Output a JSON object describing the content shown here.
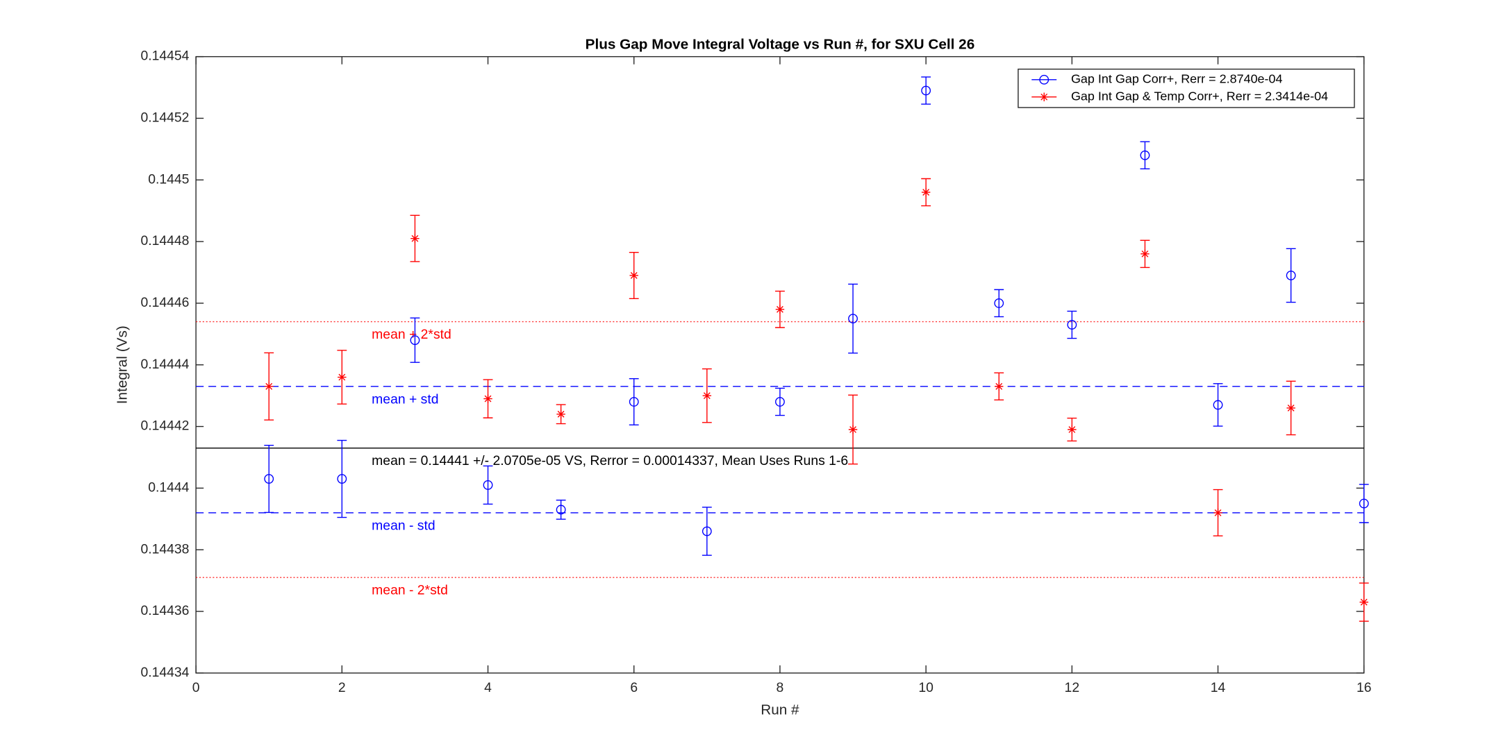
{
  "chart_data": {
    "type": "errorbar",
    "title": "Plus Gap Move Integral Voltage vs Run #, for SXU Cell 26",
    "x_label": "Run #",
    "y_label": "Integral (Vs)",
    "xlim": [
      0,
      16
    ],
    "xticks": [
      0,
      2,
      4,
      6,
      8,
      10,
      12,
      14,
      16
    ],
    "ylim": [
      0.14434,
      0.14454
    ],
    "yticks": [
      0.14434,
      0.14436,
      0.14438,
      0.1444,
      0.14442,
      0.14444,
      0.14446,
      0.14448,
      0.1445,
      0.14452,
      0.14454
    ],
    "legend": "northeast",
    "x": [
      1,
      2,
      3,
      4,
      5,
      6,
      7,
      8,
      9,
      10,
      11,
      12,
      13,
      14,
      15,
      16
    ],
    "series": [
      {
        "name": "Gap Int Gap Corr+, Rerr = 2.8740e-04",
        "color": "#0000ff",
        "marker": "circle",
        "values": [
          0.144403,
          0.144403,
          0.144448,
          0.144401,
          0.144393,
          0.144428,
          0.144386,
          0.144428,
          0.144455,
          0.144529,
          0.14446,
          0.144453,
          0.144508,
          0.144427,
          0.144469,
          0.144395
        ],
        "errors": [
          1.09e-05,
          1.25e-05,
          7.2e-06,
          6.2e-06,
          3.1e-06,
          7.5e-06,
          7.8e-06,
          4.4e-06,
          1.12e-05,
          4.4e-06,
          4.4e-06,
          4.4e-06,
          4.4e-06,
          6.9e-06,
          8.7e-06,
          6.2e-06
        ]
      },
      {
        "name": "Gap Int Gap & Temp  Corr+, Rerr = 2.3414e-04",
        "color": "#ff0000",
        "marker": "asterisk",
        "values": [
          0.144433,
          0.144436,
          0.144481,
          0.144429,
          0.144424,
          0.144469,
          0.14443,
          0.144458,
          0.144419,
          0.144496,
          0.144433,
          0.144419,
          0.144476,
          0.144392,
          0.144426,
          0.144363
        ],
        "errors": [
          1.09e-05,
          8.7e-06,
          7.5e-06,
          6.2e-06,
          3.1e-06,
          7.5e-06,
          8.7e-06,
          5.9e-06,
          1.12e-05,
          4.4e-06,
          4.4e-06,
          3.7e-06,
          4.4e-06,
          7.5e-06,
          8.7e-06,
          6.2e-06
        ]
      }
    ],
    "hlines": [
      {
        "value": 0.144454,
        "label": "mean + 2*std",
        "color": "#ff0000",
        "style": "dotted"
      },
      {
        "value": 0.144433,
        "label": "mean + std",
        "color": "#0000ff",
        "style": "dashed"
      },
      {
        "value": 0.144413,
        "label": "mean = 0.14441 +/- 2.0705e-05 VS, Rerror = 0.00014337, Mean Uses Runs 1-6",
        "color": "#000000",
        "style": "solid"
      },
      {
        "value": 0.144392,
        "label": "mean - std",
        "color": "#0000ff",
        "style": "dashed"
      },
      {
        "value": 0.144371,
        "label": "mean - 2*std",
        "color": "#ff0000",
        "style": "dotted"
      }
    ]
  }
}
